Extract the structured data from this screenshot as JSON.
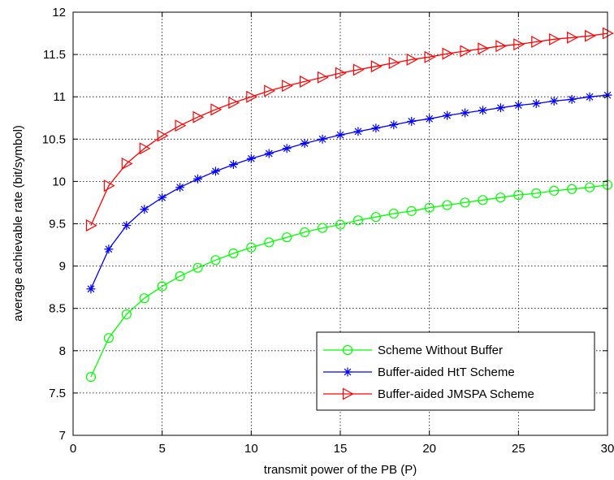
{
  "chart_data": {
    "type": "line",
    "xlabel": "transmit power of the PB (P)",
    "ylabel": "average achievable rate (bit/symbol)",
    "xlim": [
      0,
      30
    ],
    "ylim": [
      7,
      12
    ],
    "xticks": [
      0,
      5,
      10,
      15,
      20,
      25,
      30
    ],
    "yticks": [
      7,
      7.5,
      8,
      8.5,
      9,
      9.5,
      10,
      10.5,
      11,
      11.5,
      12
    ],
    "xtick_labels": [
      "0",
      "5",
      "10",
      "15",
      "20",
      "25",
      "30"
    ],
    "ytick_labels": [
      "7",
      "7.5",
      "8",
      "8.5",
      "9",
      "9.5",
      "10",
      "10.5",
      "11",
      "11.5",
      "12"
    ],
    "grid": true,
    "legend_position": "bottom-right",
    "x": [
      1,
      2,
      3,
      4,
      5,
      6,
      7,
      8,
      9,
      10,
      11,
      12,
      13,
      14,
      15,
      16,
      17,
      18,
      19,
      20,
      21,
      22,
      23,
      24,
      25,
      26,
      27,
      28,
      29,
      30
    ],
    "series": [
      {
        "name": "Scheme Without Buffer",
        "color": "#00ff00",
        "marker": "circle",
        "values": [
          7.69,
          8.15,
          8.43,
          8.62,
          8.76,
          8.88,
          8.98,
          9.07,
          9.15,
          9.22,
          9.28,
          9.34,
          9.4,
          9.45,
          9.49,
          9.54,
          9.58,
          9.62,
          9.65,
          9.69,
          9.72,
          9.75,
          9.78,
          9.81,
          9.84,
          9.86,
          9.89,
          9.91,
          9.93,
          9.96
        ]
      },
      {
        "name": "Buffer-aided HtT Scheme",
        "color": "#0000ff",
        "marker": "asterisk",
        "values": [
          8.73,
          9.2,
          9.48,
          9.67,
          9.81,
          9.93,
          10.03,
          10.12,
          10.2,
          10.27,
          10.33,
          10.39,
          10.45,
          10.5,
          10.55,
          10.59,
          10.63,
          10.67,
          10.71,
          10.74,
          10.78,
          10.81,
          10.84,
          10.87,
          10.9,
          10.92,
          10.95,
          10.97,
          11.0,
          11.02
        ]
      },
      {
        "name": "Buffer-aided JMSPA Scheme",
        "color": "#ff0000",
        "marker": "triangle-right",
        "values": [
          9.48,
          9.95,
          10.21,
          10.39,
          10.54,
          10.66,
          10.76,
          10.85,
          10.93,
          11.0,
          11.07,
          11.13,
          11.18,
          11.23,
          11.28,
          11.32,
          11.36,
          11.4,
          11.44,
          11.47,
          11.51,
          11.54,
          11.57,
          11.6,
          11.62,
          11.65,
          11.68,
          11.7,
          11.72,
          11.75
        ]
      }
    ]
  }
}
